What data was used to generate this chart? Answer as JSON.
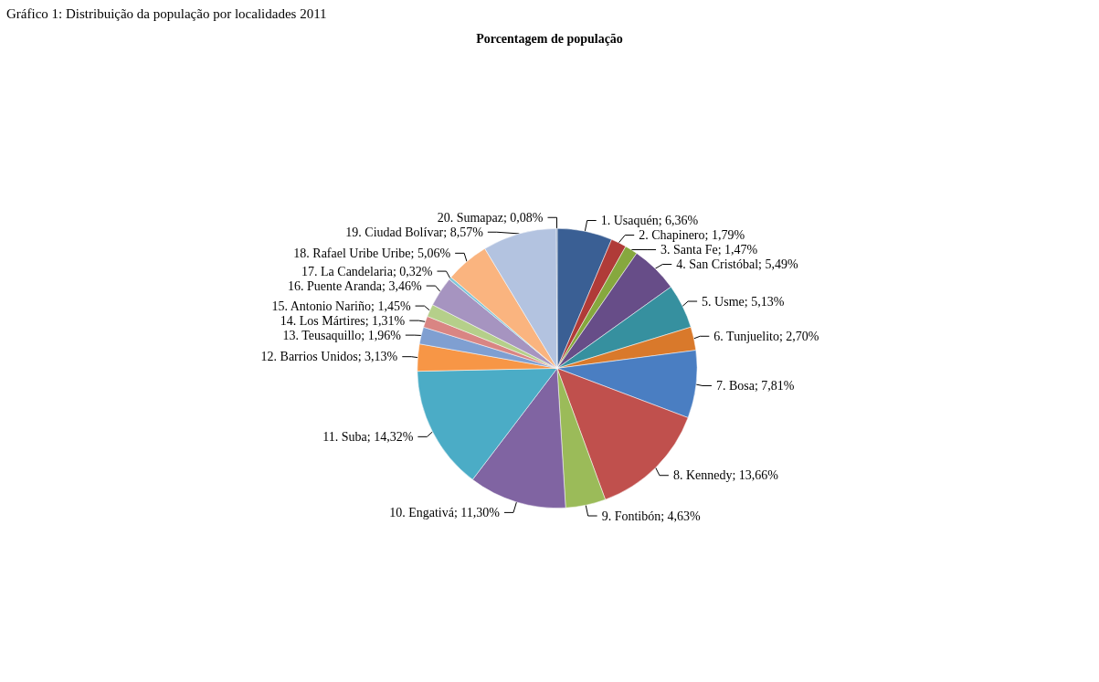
{
  "chart_data": {
    "type": "pie",
    "title": "Gráfico 1: Distribuição da população por localidades 2011",
    "subtitle": "Porcentagem de população",
    "categories": [
      "1. Usaquén",
      "2. Chapinero",
      "3. Santa Fe",
      "4. San Cristóbal",
      "5. Usme",
      "6. Tunjuelito",
      "7. Bosa",
      "8. Kennedy",
      "9. Fontibón",
      "10. Engativá",
      "11. Suba",
      "12. Barrios Unidos",
      "13. Teusaquillo",
      "14. Los Mártires",
      "15. Antonio Nariño",
      "16. Puente Aranda",
      "17. La Candelaria",
      "18. Rafael Uribe Uribe",
      "19. Ciudad Bolívar",
      "20. Sumapaz"
    ],
    "values": [
      6.36,
      1.79,
      1.47,
      5.49,
      5.13,
      2.7,
      7.81,
      13.66,
      4.63,
      11.3,
      14.32,
      3.13,
      1.96,
      1.31,
      1.45,
      3.46,
      0.32,
      5.06,
      8.57,
      0.08
    ],
    "value_labels": [
      "6,36%",
      "1,79%",
      "1,47%",
      "5,49%",
      "5,13%",
      "2,70%",
      "7,81%",
      "13,66%",
      "4,63%",
      "11,30%",
      "14,32%",
      "3,13%",
      "1,96%",
      "1,31%",
      "1,45%",
      "3,46%",
      "0,32%",
      "5,06%",
      "8,57%",
      "0,08%"
    ],
    "colors": [
      "#3a5f94",
      "#b03b38",
      "#86a83e",
      "#674d88",
      "#36909f",
      "#d9792b",
      "#4a7ec2",
      "#c0504d",
      "#9bbb59",
      "#8064a2",
      "#4bacc6",
      "#f79646",
      "#7f9fd1",
      "#d98583",
      "#b5cf8a",
      "#a694c0",
      "#7fc6d9",
      "#fab47f",
      "#b3c3e0",
      "#3a5f94"
    ],
    "legend": false
  }
}
